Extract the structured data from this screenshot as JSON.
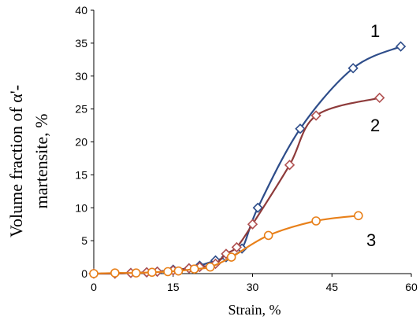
{
  "chart_data": {
    "type": "line",
    "title": "",
    "xlabel": "Strain, %",
    "ylabel_line1": "Volume fraction of α'-",
    "ylabel_line2": "martensite,  %",
    "xlim": [
      0,
      60
    ],
    "ylim": [
      0,
      40
    ],
    "x_ticks": [
      "0",
      "15",
      "30",
      "45",
      "60"
    ],
    "y_ticks": [
      "0",
      "5",
      "10",
      "15",
      "20",
      "25",
      "30",
      "35",
      "40"
    ],
    "grid": false,
    "series": [
      {
        "label": "1",
        "marker": "diamond",
        "line_color": "#2e4d8a",
        "marker_color": "#2e4d8a",
        "x": [
          0,
          4,
          7,
          10,
          12,
          15,
          18,
          20,
          23,
          25,
          28,
          31,
          39,
          49,
          58
        ],
        "y": [
          0,
          0,
          0.1,
          0.2,
          0.3,
          0.6,
          0.8,
          1.2,
          2.0,
          2.5,
          3.8,
          10,
          22,
          31.2,
          34.5
        ]
      },
      {
        "label": "2",
        "marker": "diamond",
        "line_color": "#8e3b3b",
        "marker_color": "#b05050",
        "x": [
          0,
          4,
          7,
          10,
          12,
          15,
          18,
          20,
          23,
          25,
          27,
          30,
          37,
          42,
          54
        ],
        "y": [
          0,
          0,
          0.1,
          0.2,
          0.3,
          0.5,
          0.8,
          1.0,
          1.5,
          3.0,
          4.0,
          7.5,
          16.5,
          24.0,
          26.7
        ]
      },
      {
        "label": "3",
        "marker": "circle",
        "line_color": "#e8801a",
        "marker_color": "#e8801a",
        "x": [
          0,
          4,
          8,
          11,
          14,
          16,
          19,
          22,
          26,
          33,
          42,
          50
        ],
        "y": [
          0,
          0.1,
          0.1,
          0.2,
          0.3,
          0.4,
          0.7,
          1.0,
          2.5,
          5.8,
          8.0,
          8.8
        ]
      }
    ]
  }
}
